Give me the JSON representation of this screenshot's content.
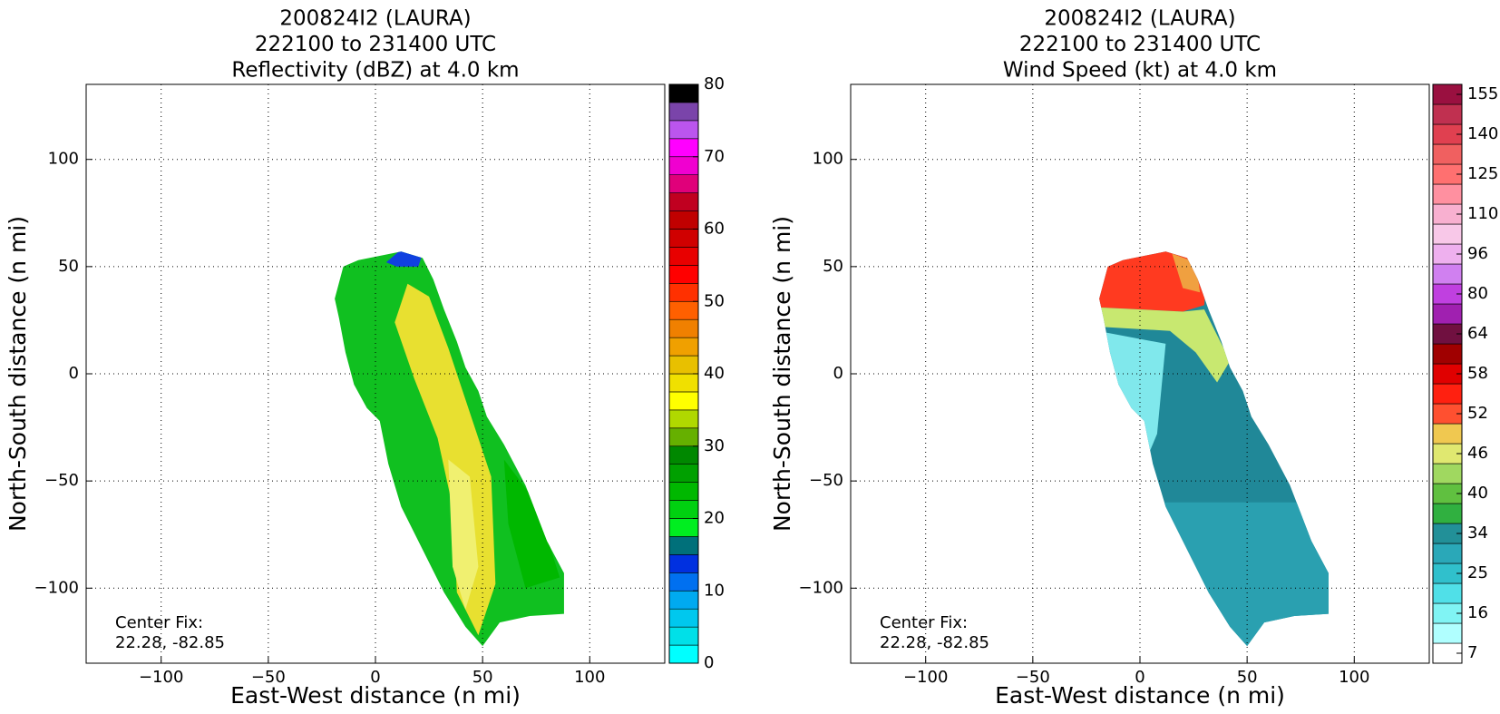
{
  "chart_data": [
    {
      "type": "contour",
      "title": [
        "200824I2 (LAURA)",
        "222100 to 231400 UTC",
        "Reflectivity (dBZ) at 4.0 km"
      ],
      "xlabel": "East-West distance (n mi)",
      "ylabel": "North-South distance (n mi)",
      "xlim": [
        -135,
        135
      ],
      "ylim": [
        -135,
        135
      ],
      "xticks": [
        {
          "value": -100,
          "label": "−100"
        },
        {
          "value": -50,
          "label": "−50"
        },
        0,
        50,
        100
      ],
      "yticks": [
        {
          "value": -100,
          "label": "−100"
        },
        {
          "value": -50,
          "label": "−50"
        },
        0,
        50,
        100
      ],
      "grid": true,
      "annotation": [
        "Center Fix:",
        "22.28, -82.85"
      ],
      "colorbar": {
        "scale": "linear",
        "lim": [
          0,
          80
        ],
        "ticks": [
          0,
          10,
          20,
          30,
          40,
          50,
          60,
          70,
          80
        ],
        "colors": [
          "#00ffff",
          "#00e0e8",
          "#00c8ee",
          "#00aaf0",
          "#0070f0",
          "#0030e0",
          "#00707a",
          "#00ee20",
          "#00d010",
          "#00b800",
          "#00a000",
          "#008800",
          "#66b000",
          "#b0d800",
          "#ffff00",
          "#f0e000",
          "#e8c000",
          "#f0a000",
          "#f08000",
          "#ff6000",
          "#ff3000",
          "#ff0000",
          "#e80000",
          "#d00000",
          "#c00000",
          "#c00020",
          "#e0007a",
          "#f000d0",
          "#ff00ff",
          "#bb55ee",
          "#7a44aa",
          "#000000"
        ]
      }
    },
    {
      "type": "contour",
      "title": [
        "200824I2 (LAURA)",
        "222100 to 231400 UTC",
        "Wind Speed (kt) at 4.0 km"
      ],
      "xlabel": "East-West distance (n mi)",
      "ylabel": "North-South distance (n mi)",
      "xlim": [
        -135,
        135
      ],
      "ylim": [
        -135,
        135
      ],
      "xticks": [
        {
          "value": -100,
          "label": "−100"
        },
        {
          "value": -50,
          "label": "−50"
        },
        0,
        50,
        100
      ],
      "yticks": [
        {
          "value": -100,
          "label": "−100"
        },
        {
          "value": -50,
          "label": "−50"
        },
        0,
        50,
        100
      ],
      "grid": true,
      "annotation": [
        "Center Fix:",
        "22.28, -82.85"
      ],
      "colorbar": {
        "scale": "index",
        "ticks": [
          7,
          16,
          25,
          34,
          40,
          46,
          52,
          58,
          64,
          80,
          96,
          110,
          125,
          140,
          155
        ],
        "colors": [
          "#ffffff",
          "#b0ffff",
          "#80f4f4",
          "#50e0e8",
          "#30c0cc",
          "#2aa8b8",
          "#229098",
          "#30b040",
          "#60c040",
          "#a0d860",
          "#e0e870",
          "#f0c850",
          "#ff5030",
          "#ff2010",
          "#e00000",
          "#a00000",
          "#701040",
          "#a020b0",
          "#c040e0",
          "#d080f0",
          "#eeb0ee",
          "#f8c8e8",
          "#f8b0d0",
          "#ff90a0",
          "#ff7070",
          "#f06060",
          "#e04050",
          "#c03050",
          "#9a1040"
        ]
      }
    }
  ]
}
